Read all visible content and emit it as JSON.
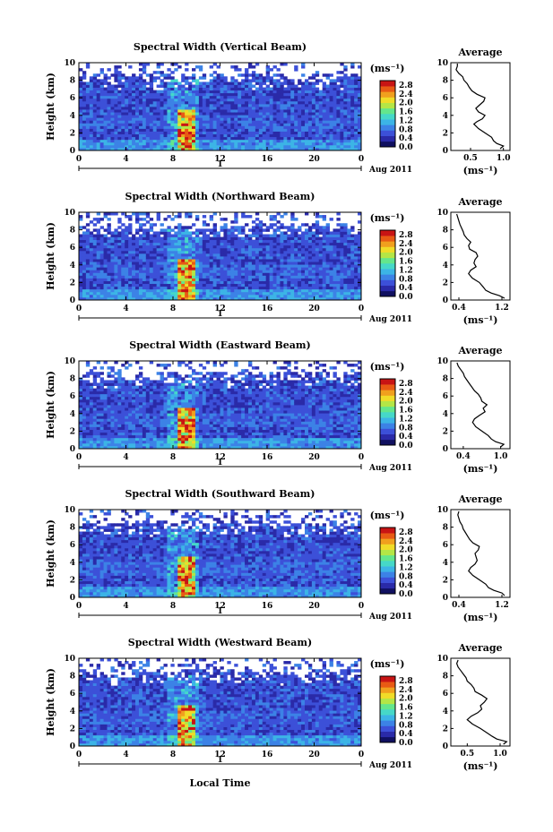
{
  "colorbar": {
    "unit": "(ms⁻¹)",
    "ticks": [
      "0.0",
      "0.4",
      "0.8",
      "1.2",
      "1.6",
      "2.0",
      "2.4",
      "2.8"
    ],
    "range": [
      0,
      3.0
    ],
    "colors": [
      "#101060",
      "#2a2aa8",
      "#3c50d8",
      "#3c82e6",
      "#3cb4e6",
      "#46d8c8",
      "#64e68c",
      "#b4e646",
      "#f0dc28",
      "#f0a01e",
      "#e85a14",
      "#c81414"
    ]
  },
  "x_axis": {
    "ticks": [
      "0",
      "4",
      "8",
      "12",
      "16",
      "20",
      "0"
    ],
    "date_label": "Aug 2011",
    "day_label": "1",
    "xlabel": "Local Time",
    "range": [
      0,
      24
    ]
  },
  "avg_axis_label": "(ms⁻¹)",
  "chart_data": [
    {
      "type": "heatmap",
      "title": "Spectral Width (Vertical Beam)",
      "ylabel": "Height (km)",
      "ylim": [
        0,
        10
      ],
      "yticks": [
        "0",
        "2",
        "4",
        "6",
        "8",
        "10"
      ],
      "profile": {
        "title": "Average",
        "xticks": [
          "0.5",
          "1.0"
        ],
        "xlim": [
          0.2,
          1.1
        ],
        "height": [
          0.2,
          0.5,
          0.8,
          1.1,
          1.5,
          2.0,
          2.5,
          3.0,
          3.3,
          3.6,
          4.0,
          4.4,
          4.8,
          5.2,
          5.6,
          6.0,
          6.4,
          6.8,
          7.2,
          7.6,
          8.0,
          8.4,
          8.8,
          9.2,
          9.6,
          9.9
        ],
        "width": [
          0.95,
          1.0,
          0.9,
          0.85,
          0.82,
          0.72,
          0.62,
          0.55,
          0.6,
          0.68,
          0.72,
          0.62,
          0.58,
          0.64,
          0.7,
          0.72,
          0.6,
          0.52,
          0.48,
          0.45,
          0.4,
          0.38,
          0.32,
          0.28,
          0.3,
          0.3
        ]
      }
    },
    {
      "type": "heatmap",
      "title": "Spectral Width (Northward Beam)",
      "ylabel": "Height (km)",
      "ylim": [
        0,
        10
      ],
      "yticks": [
        "0",
        "2",
        "4",
        "6",
        "8",
        "10"
      ],
      "profile": {
        "title": "Average",
        "xticks": [
          "0.4",
          "1.2"
        ],
        "xlim": [
          0.25,
          1.35
        ],
        "height": [
          0.2,
          0.5,
          0.8,
          1.1,
          1.5,
          2.0,
          2.5,
          3.0,
          3.4,
          3.8,
          4.2,
          4.6,
          5.0,
          5.4,
          5.8,
          6.2,
          6.6,
          7.0,
          7.4,
          7.8,
          8.2,
          8.6,
          9.0,
          9.4,
          9.8
        ],
        "width": [
          1.25,
          1.15,
          1.0,
          0.9,
          0.85,
          0.78,
          0.65,
          0.58,
          0.62,
          0.72,
          0.68,
          0.7,
          0.75,
          0.72,
          0.6,
          0.58,
          0.62,
          0.55,
          0.5,
          0.48,
          0.45,
          0.42,
          0.4,
          0.38,
          0.36
        ]
      }
    },
    {
      "type": "heatmap",
      "title": "Spectral Width (Eastward Beam)",
      "ylabel": "Height (km)",
      "ylim": [
        0,
        10
      ],
      "yticks": [
        "0",
        "2",
        "4",
        "6",
        "8",
        "10"
      ],
      "profile": {
        "title": "Average",
        "xticks": [
          "0.4",
          "1.0"
        ],
        "xlim": [
          0.2,
          1.15
        ],
        "height": [
          0.2,
          0.5,
          0.8,
          1.1,
          1.5,
          2.0,
          2.5,
          3.0,
          3.4,
          3.8,
          4.2,
          4.6,
          5.0,
          5.4,
          5.8,
          6.2,
          6.6,
          7.0,
          7.4,
          7.8,
          8.2,
          8.6,
          9.0,
          9.4,
          9.8
        ],
        "width": [
          1.0,
          1.05,
          0.92,
          0.85,
          0.8,
          0.7,
          0.6,
          0.55,
          0.58,
          0.66,
          0.75,
          0.72,
          0.78,
          0.7,
          0.68,
          0.64,
          0.58,
          0.54,
          0.5,
          0.46,
          0.42,
          0.4,
          0.36,
          0.32,
          0.3
        ]
      }
    },
    {
      "type": "heatmap",
      "title": "Spectral Width (Southward Beam)",
      "ylabel": "Height (km)",
      "ylim": [
        0,
        10
      ],
      "yticks": [
        "0",
        "2",
        "4",
        "6",
        "8",
        "10"
      ],
      "profile": {
        "title": "Average",
        "xticks": [
          "0.4",
          "1.2"
        ],
        "xlim": [
          0.25,
          1.35
        ],
        "height": [
          0.2,
          0.5,
          0.8,
          1.1,
          1.5,
          2.0,
          2.5,
          3.0,
          3.4,
          3.8,
          4.2,
          4.6,
          5.0,
          5.4,
          5.8,
          6.2,
          6.6,
          7.0,
          7.4,
          7.8,
          8.2,
          8.6,
          9.0,
          9.4,
          9.8
        ],
        "width": [
          1.25,
          1.2,
          1.05,
          0.95,
          0.9,
          0.78,
          0.66,
          0.58,
          0.62,
          0.7,
          0.74,
          0.72,
          0.7,
          0.76,
          0.78,
          0.66,
          0.6,
          0.56,
          0.52,
          0.48,
          0.46,
          0.42,
          0.4,
          0.38,
          0.4
        ]
      }
    },
    {
      "type": "heatmap",
      "title": "Spectral Width (Westward Beam)",
      "ylabel": "Height (km)",
      "ylim": [
        0,
        10
      ],
      "yticks": [
        "0",
        "2",
        "4",
        "6",
        "8",
        "10"
      ],
      "profile": {
        "title": "Average",
        "xticks": [
          "0.5",
          "1.0"
        ],
        "xlim": [
          0.25,
          1.15
        ],
        "height": [
          0.2,
          0.5,
          0.8,
          1.1,
          1.5,
          2.0,
          2.5,
          3.0,
          3.4,
          3.8,
          4.2,
          4.6,
          5.0,
          5.4,
          5.8,
          6.2,
          6.6,
          7.0,
          7.4,
          7.8,
          8.2,
          8.6,
          9.0,
          9.4,
          9.8
        ],
        "width": [
          1.05,
          1.1,
          0.95,
          0.88,
          0.8,
          0.7,
          0.58,
          0.5,
          0.56,
          0.66,
          0.72,
          0.7,
          0.76,
          0.8,
          0.72,
          0.62,
          0.6,
          0.56,
          0.5,
          0.48,
          0.44,
          0.4,
          0.36,
          0.34,
          0.36
        ]
      }
    }
  ]
}
